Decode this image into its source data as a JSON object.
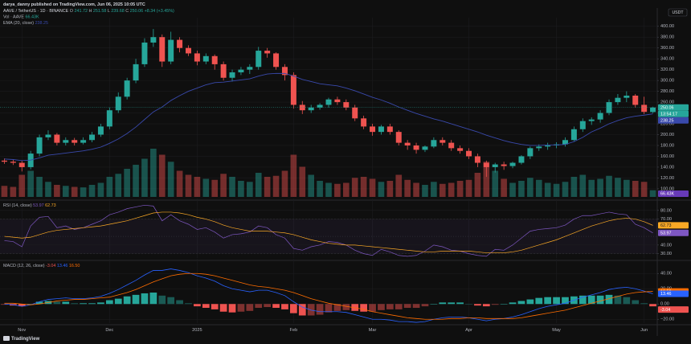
{
  "header": "darya_danny published on TradingView.com, Jun 06, 2025 10:05 UTC",
  "currency": "USDT",
  "footer": "TradingView",
  "chart_data": [
    {
      "type": "candlestick",
      "title": "AAVE / TetherUS · 1D · BINANCE",
      "ohlc_labels": [
        "O",
        "H",
        "L",
        "C"
      ],
      "change": "+8.34 (+3.45%)",
      "countdown": "13:54:17",
      "up_color": "#26a69a",
      "down_color": "#ef5350",
      "categories": [
        null,
        null,
        "Nov",
        null,
        null,
        null,
        null,
        null,
        null,
        null,
        null,
        null,
        "Dec",
        null,
        null,
        null,
        null,
        null,
        null,
        null,
        null,
        null,
        "2025",
        null,
        null,
        null,
        null,
        null,
        null,
        null,
        null,
        null,
        null,
        "Feb",
        null,
        null,
        null,
        null,
        null,
        null,
        null,
        null,
        "Mar",
        null,
        null,
        null,
        null,
        null,
        null,
        null,
        null,
        null,
        null,
        "Apr",
        null,
        null,
        null,
        null,
        null,
        null,
        null,
        null,
        null,
        "May",
        null,
        null,
        null,
        null,
        null,
        null,
        null,
        null,
        null,
        "Jun",
        null
      ],
      "open": [
        152,
        150,
        148,
        140,
        165,
        195,
        200,
        185,
        190,
        185,
        190,
        200,
        215,
        245,
        270,
        300,
        330,
        370,
        380,
        335,
        375,
        360,
        350,
        335,
        345,
        330,
        305,
        315,
        320,
        325,
        355,
        350,
        325,
        310,
        255,
        245,
        250,
        255,
        265,
        260,
        250,
        230,
        215,
        205,
        215,
        205,
        185,
        180,
        172,
        178,
        190,
        185,
        175,
        170,
        160,
        148,
        140,
        145,
        142,
        148,
        160,
        175,
        178,
        180,
        182,
        190,
        210,
        225,
        228,
        240,
        260,
        268,
        272,
        255,
        241.72
      ],
      "high": [
        156,
        154,
        152,
        170,
        200,
        208,
        203,
        195,
        194,
        195,
        205,
        220,
        250,
        278,
        305,
        340,
        378,
        395,
        385,
        390,
        380,
        365,
        355,
        350,
        348,
        335,
        320,
        325,
        330,
        362,
        360,
        352,
        330,
        315,
        262,
        255,
        258,
        268,
        270,
        265,
        255,
        235,
        220,
        218,
        220,
        208,
        190,
        185,
        180,
        195,
        195,
        190,
        180,
        175,
        165,
        152,
        148,
        150,
        150,
        162,
        178,
        182,
        185,
        186,
        195,
        215,
        230,
        232,
        245,
        265,
        275,
        280,
        275,
        270,
        251.58
      ],
      "low": [
        146,
        144,
        132,
        136,
        160,
        190,
        180,
        180,
        180,
        182,
        186,
        196,
        210,
        240,
        265,
        295,
        325,
        362,
        325,
        330,
        352,
        345,
        328,
        330,
        320,
        300,
        298,
        310,
        312,
        320,
        342,
        320,
        300,
        248,
        238,
        240,
        246,
        250,
        255,
        245,
        225,
        210,
        198,
        200,
        200,
        180,
        172,
        165,
        168,
        175,
        180,
        170,
        165,
        155,
        140,
        122,
        130,
        135,
        138,
        145,
        155,
        170,
        172,
        175,
        178,
        188,
        205,
        218,
        222,
        236,
        255,
        260,
        250,
        238,
        239.68
      ],
      "close": [
        150,
        148,
        140,
        165,
        195,
        200,
        185,
        190,
        185,
        190,
        200,
        215,
        245,
        270,
        300,
        330,
        370,
        380,
        335,
        375,
        360,
        350,
        335,
        345,
        330,
        305,
        315,
        320,
        325,
        355,
        350,
        325,
        310,
        255,
        245,
        250,
        255,
        265,
        260,
        250,
        230,
        215,
        205,
        215,
        205,
        185,
        180,
        172,
        178,
        190,
        185,
        175,
        170,
        160,
        148,
        140,
        145,
        142,
        148,
        160,
        175,
        178,
        180,
        182,
        190,
        210,
        225,
        228,
        240,
        260,
        268,
        272,
        255,
        242,
        250.06
      ],
      "ema": {
        "name": "EMA (20, close)",
        "color": "#3949ab",
        "values": [
          155,
          154,
          152,
          153,
          157,
          162,
          164,
          166,
          168,
          170,
          173,
          177,
          184,
          192,
          202,
          214,
          228,
          242,
          251,
          263,
          272,
          280,
          286,
          292,
          296,
          297,
          299,
          301,
          303,
          308,
          312,
          313,
          313,
          308,
          302,
          298,
          294,
          292,
          290,
          286,
          281,
          275,
          269,
          264,
          258,
          251,
          245,
          239,
          234,
          229,
          225,
          220,
          215,
          210,
          205,
          199,
          194,
          189,
          185,
          182,
          180,
          180,
          181,
          181,
          182,
          187,
          195,
          205,
          212,
          220,
          226,
          231,
          234,
          236,
          238.25
        ]
      },
      "volume": {
        "name": "Vol · AAVE",
        "color": "#673ab7",
        "values": [
          110,
          100,
          220,
          260,
          200,
          150,
          120,
          110,
          100,
          95,
          120,
          140,
          200,
          230,
          280,
          320,
          380,
          480,
          420,
          350,
          260,
          220,
          200,
          180,
          170,
          230,
          200,
          160,
          150,
          240,
          200,
          210,
          260,
          420,
          300,
          220,
          160,
          140,
          130,
          140,
          190,
          200,
          180,
          150,
          160,
          220,
          170,
          140,
          120,
          150,
          130,
          140,
          160,
          170,
          240,
          350,
          260,
          180,
          140,
          160,
          190,
          170,
          140,
          130,
          150,
          200,
          220,
          170,
          180,
          210,
          190,
          170,
          160,
          150,
          66.43
        ],
        "value_labels": [
          null,
          null,
          null,
          null,
          null,
          null,
          null,
          null,
          null,
          null,
          null,
          null,
          null,
          null,
          null,
          null,
          null,
          null,
          null,
          null,
          null,
          null,
          null,
          null,
          null,
          null,
          null,
          null,
          null,
          null,
          null,
          null,
          null,
          null,
          null,
          null,
          null,
          null,
          null,
          null,
          null,
          null,
          null,
          null,
          null,
          null,
          null,
          null,
          null,
          null,
          null,
          null,
          null,
          null,
          null,
          null,
          null,
          null,
          null,
          null,
          null,
          null,
          null,
          null,
          null,
          null,
          null,
          null,
          null,
          null,
          null,
          null,
          null,
          null,
          "66.43K"
        ]
      },
      "ylim": [
        85,
        410
      ],
      "yticks": [
        {
          "value": 100,
          "label": "100.00"
        },
        {
          "value": 120,
          "label": "120.00"
        },
        {
          "value": 140,
          "label": "140.00"
        },
        {
          "value": 160,
          "label": "160.00"
        },
        {
          "value": 180,
          "label": "180.00"
        },
        {
          "value": 200,
          "label": "200.00"
        },
        {
          "value": 220,
          "label": "220.00"
        },
        {
          "value": 240,
          "label": "240.00"
        },
        {
          "value": 260,
          "label": "260.00"
        },
        {
          "value": 280,
          "label": "280.00"
        },
        {
          "value": 300,
          "label": "300.00"
        },
        {
          "value": 320,
          "label": "320.00"
        },
        {
          "value": 340,
          "label": "340.00"
        },
        {
          "value": 360,
          "label": "360.00"
        },
        {
          "value": 380,
          "label": "380.00"
        },
        {
          "value": 400,
          "label": "400.00"
        }
      ],
      "grid": true
    },
    {
      "type": "line",
      "title": "RSI (14, close)",
      "series": [
        {
          "color": "#7e57c2",
          "values": [
            45,
            44,
            38,
            62,
            72,
            73,
            60,
            62,
            58,
            60,
            64,
            68,
            75,
            78,
            82,
            84,
            86,
            85,
            68,
            75,
            68,
            64,
            58,
            60,
            55,
            48,
            52,
            53,
            55,
            62,
            60,
            52,
            48,
            36,
            34,
            38,
            40,
            44,
            43,
            40,
            34,
            30,
            28,
            35,
            32,
            28,
            27,
            28,
            33,
            40,
            38,
            34,
            33,
            30,
            28,
            27,
            35,
            34,
            40,
            48,
            56,
            58,
            59,
            60,
            63,
            70,
            74,
            74,
            76,
            78,
            76,
            75,
            64,
            60,
            53.97
          ]
        },
        {
          "color": "#f9a825",
          "values": [
            50,
            49,
            48,
            49,
            52,
            55,
            57,
            58,
            59,
            60,
            61,
            62,
            64,
            66,
            68,
            71,
            74,
            77,
            78,
            78,
            77,
            75,
            72,
            70,
            67,
            63,
            60,
            58,
            56,
            56,
            56,
            55,
            54,
            52,
            49,
            46,
            44,
            42,
            41,
            40,
            40,
            39,
            38,
            37,
            36,
            35,
            34,
            33,
            32,
            32,
            33,
            33,
            33,
            33,
            32,
            31,
            31,
            31,
            32,
            34,
            37,
            40,
            43,
            46,
            50,
            54,
            58,
            62,
            65,
            68,
            70,
            71,
            70,
            67,
            62.73
          ]
        }
      ],
      "band": [
        30,
        70
      ],
      "midline": 50,
      "ylim": [
        25,
        90
      ],
      "yticks": [
        {
          "value": 30,
          "label": "30.00"
        },
        {
          "value": 40,
          "label": "40.00"
        },
        {
          "value": 70,
          "label": "70.00"
        },
        {
          "value": 80,
          "label": "80.00"
        }
      ],
      "grid": true
    },
    {
      "type": "macd",
      "title": "MACD (12, 26, close)",
      "histogram": {
        "up_color": "#26a69a",
        "down_color": "#ef5350",
        "values": [
          -1,
          -2,
          -3,
          0,
          3,
          4,
          3,
          3,
          1,
          1,
          1,
          2,
          5,
          7,
          10,
          12,
          14,
          15,
          11,
          9,
          5,
          1,
          -3,
          -5,
          -7,
          -10,
          -11,
          -10,
          -9,
          -5,
          -4,
          -5,
          -7,
          -12,
          -15,
          -15,
          -14,
          -11,
          -9,
          -8,
          -9,
          -10,
          -10,
          -8,
          -7,
          -7,
          -5,
          -5,
          -3,
          0,
          2,
          2,
          2,
          0,
          -2,
          -3,
          -1,
          0,
          2,
          4,
          6,
          8,
          9,
          9,
          9,
          10,
          11,
          11,
          11,
          12,
          11,
          9,
          5,
          1,
          -3.04
        ]
      },
      "series": [
        {
          "color": "#2962ff",
          "values": [
            0,
            -1,
            -3,
            -1,
            3,
            6,
            7,
            8,
            7,
            7,
            8,
            10,
            14,
            19,
            25,
            31,
            38,
            44,
            44,
            46,
            44,
            41,
            37,
            34,
            30,
            24,
            20,
            18,
            16,
            18,
            18,
            15,
            11,
            3,
            -4,
            -8,
            -10,
            -10,
            -10,
            -11,
            -14,
            -17,
            -20,
            -20,
            -21,
            -23,
            -23,
            -24,
            -23,
            -20,
            -18,
            -17,
            -17,
            -18,
            -20,
            -22,
            -20,
            -19,
            -17,
            -14,
            -10,
            -6,
            -3,
            -1,
            1,
            5,
            9,
            12,
            15,
            19,
            21,
            22,
            20,
            17,
            13.46
          ]
        },
        {
          "color": "#ff6d00",
          "values": [
            1,
            1,
            0,
            -1,
            0,
            2,
            4,
            5,
            6,
            6,
            7,
            8,
            9,
            12,
            15,
            19,
            24,
            29,
            33,
            37,
            39,
            40,
            40,
            39,
            37,
            34,
            31,
            28,
            25,
            23,
            22,
            20,
            18,
            15,
            11,
            7,
            4,
            1,
            -1,
            -3,
            -5,
            -7,
            -10,
            -12,
            -14,
            -16,
            -18,
            -19,
            -20,
            -20,
            -20,
            -19,
            -19,
            -18,
            -18,
            -19,
            -19,
            -19,
            -19,
            -18,
            -16,
            -14,
            -12,
            -10,
            -8,
            -5,
            -2,
            1,
            4,
            7,
            10,
            13,
            15,
            16,
            16.5
          ],
          "value_labels": [
            null,
            null,
            null,
            null,
            null,
            null,
            null,
            null,
            null,
            null,
            null,
            null,
            null,
            null,
            null,
            null,
            null,
            null,
            null,
            null,
            null,
            null,
            null,
            null,
            null,
            null,
            null,
            null,
            null,
            null,
            null,
            null,
            null,
            null,
            null,
            null,
            null,
            null,
            null,
            null,
            null,
            null,
            null,
            null,
            null,
            null,
            null,
            null,
            null,
            null,
            null,
            null,
            null,
            null,
            null,
            null,
            null,
            null,
            null,
            null,
            null,
            null,
            null,
            null,
            null,
            null,
            null,
            null,
            null,
            null,
            null,
            null,
            null,
            null,
            "16.50"
          ]
        }
      ],
      "ylim": [
        -25,
        55
      ],
      "yticks": [
        {
          "value": -20,
          "label": "−20.00"
        },
        {
          "value": 0,
          "label": "0.00"
        },
        {
          "value": 20,
          "label": "20.00"
        },
        {
          "value": 40,
          "label": "40.00"
        }
      ],
      "grid": true
    }
  ]
}
